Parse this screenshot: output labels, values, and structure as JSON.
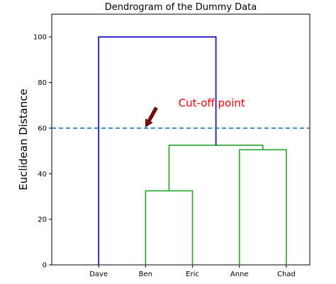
{
  "chart_data": {
    "type": "dendrogram",
    "title": "Dendrogram of the Dummy Data",
    "xlabel": "",
    "ylabel": "Euclidean Distance",
    "ylim": [
      0,
      110
    ],
    "yticks": [
      0,
      20,
      40,
      60,
      80,
      100
    ],
    "ytick_labels": [
      "0",
      "20",
      "40",
      "60",
      "80",
      "100"
    ],
    "leaves": [
      "Dave",
      "Ben",
      "Eric",
      "Anne",
      "Chad"
    ],
    "merges": [
      {
        "left": "Ben",
        "right": "Eric",
        "height": 32.5,
        "color": "#2ca02c"
      },
      {
        "left": "Anne",
        "right": "Chad",
        "height": 50.5,
        "color": "#2ca02c"
      },
      {
        "left": "Ben+Eric",
        "right": "Anne+Chad",
        "height": 52.5,
        "color": "#2ca02c"
      },
      {
        "left": "Dave",
        "right": "Ben+Eric+Anne+Chad",
        "height": 100,
        "color": "#0000cc"
      }
    ],
    "cutoff": {
      "y": 60,
      "label": "Cut-off point",
      "line_color": "#1f77b4",
      "label_color": "#ff0000",
      "arrow_color": "#8b0000",
      "label_pos": [
        2.7,
        69.5
      ],
      "arrow_tip": [
        2.0,
        60.5
      ]
    },
    "grid": false
  }
}
